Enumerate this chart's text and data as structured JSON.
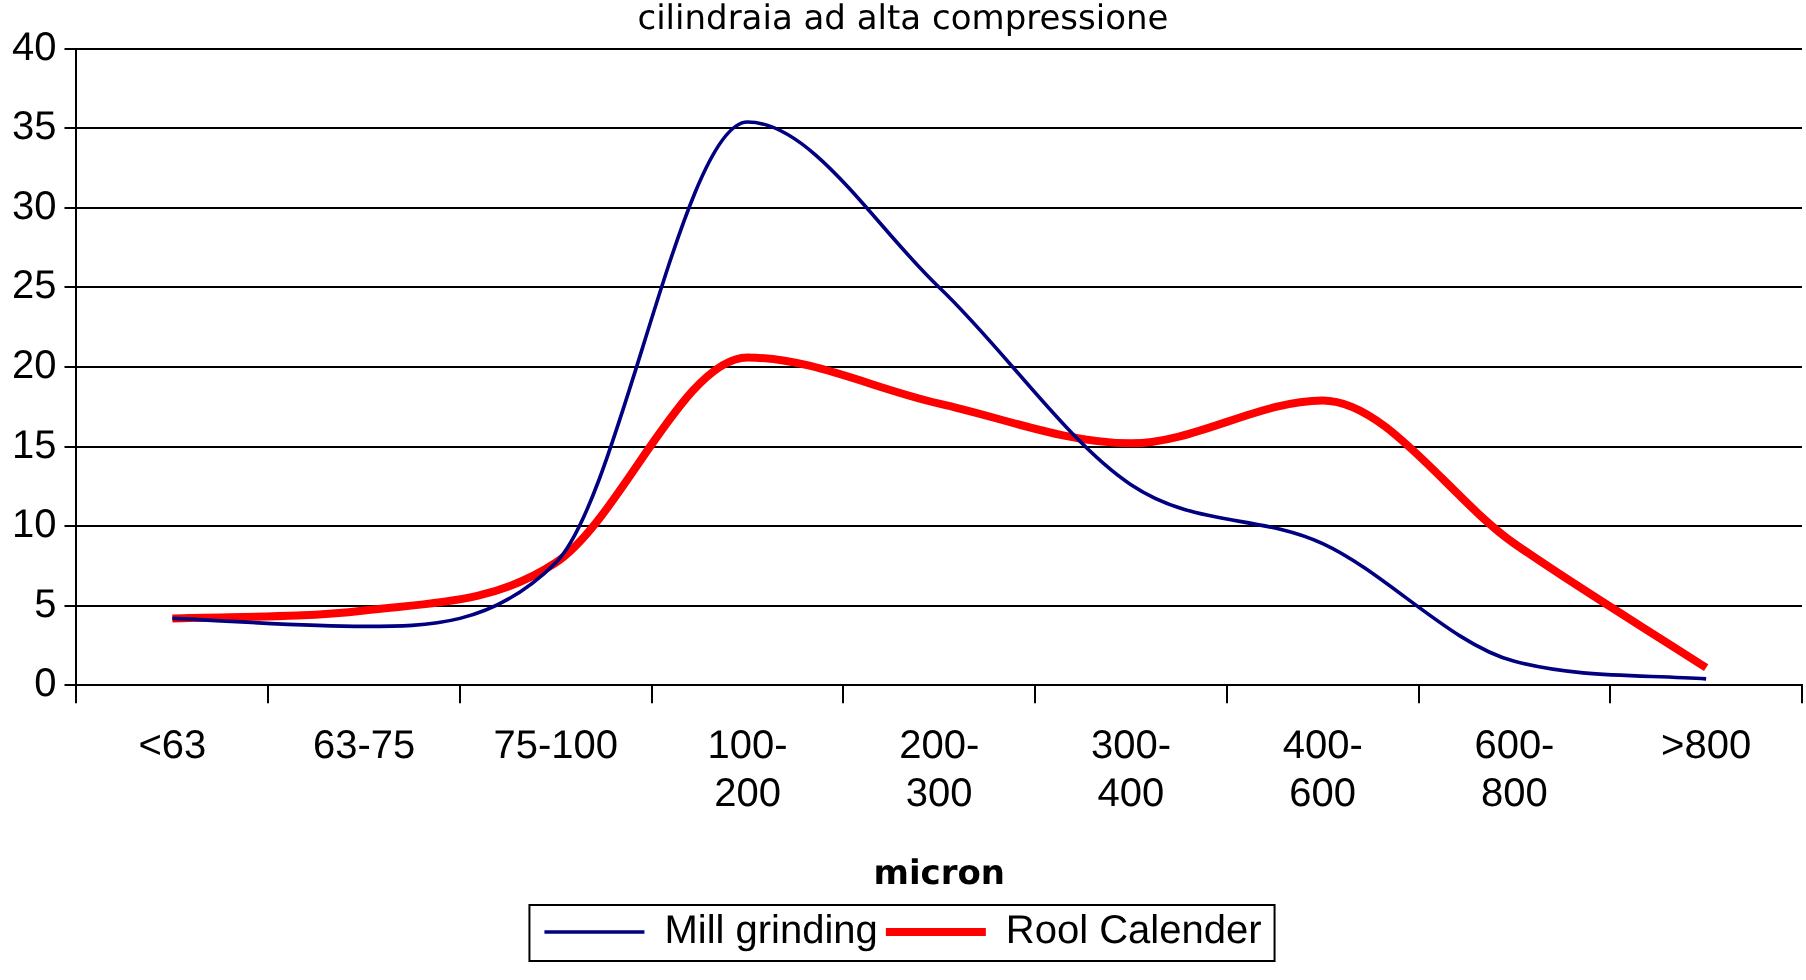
{
  "chart_data": {
    "type": "line",
    "title": "cilindraia ad alta compressione",
    "xlabel": "micron",
    "categories": [
      "<63",
      "63-75",
      "75-100",
      "100-200",
      "200-300",
      "300-400",
      "400-600",
      "600-800",
      ">800"
    ],
    "series": [
      {
        "name": "Mill grinding",
        "color": "#000080",
        "values": [
          4.2,
          3.7,
          7.7,
          35.4,
          25.0,
          12.6,
          8.9,
          1.5,
          0.4
        ]
      },
      {
        "name": "Rool Calender",
        "color": "#ff0000",
        "values": [
          4.2,
          4.7,
          7.7,
          20.6,
          17.7,
          15.2,
          17.9,
          8.9,
          1.1
        ]
      }
    ],
    "ylim": [
      0,
      40
    ],
    "yticks": [
      0,
      5,
      10,
      15,
      20,
      25,
      30,
      35,
      40
    ],
    "grid": "y",
    "legend": "bottom",
    "marker": "none",
    "line_style": "solid"
  }
}
